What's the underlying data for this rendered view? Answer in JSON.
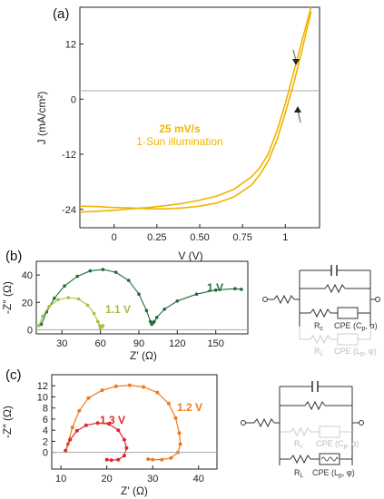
{
  "panels": {
    "a": "(a)",
    "b": "(b)",
    "c": "(c)"
  },
  "chart_data": [
    {
      "type": "line",
      "panel": "(a)",
      "xlabel": "V (V)",
      "ylabel": "J (mA/cm²)",
      "xlim": [
        -0.2,
        1.2
      ],
      "ylim": [
        -28,
        20
      ],
      "xticks": [
        "0",
        "0.25",
        "0.50",
        "0.75",
        "1"
      ],
      "yticks": [
        "-24",
        "-12",
        "0",
        "12"
      ],
      "annotations": [
        "25 mV/s",
        "1-Sun illumination"
      ],
      "color": "#f0b400",
      "series": [
        {
          "x": [
            -0.2,
            -0.1,
            0.0,
            0.1,
            0.2,
            0.3,
            0.4,
            0.5,
            0.6,
            0.7,
            0.8,
            0.85,
            0.9,
            0.95,
            1.0,
            1.05,
            1.1,
            1.15
          ],
          "y": [
            -24.6,
            -24.4,
            -24.2,
            -23.9,
            -23.6,
            -23.2,
            -22.7,
            -22.0,
            -21.1,
            -19.6,
            -17.0,
            -15.0,
            -12.0,
            -7.0,
            -1.0,
            6.0,
            13.0,
            20.0
          ]
        },
        {
          "x": [
            -0.2,
            -0.1,
            0.0,
            0.1,
            0.2,
            0.3,
            0.4,
            0.5,
            0.6,
            0.7,
            0.8,
            0.85,
            0.9,
            0.95,
            1.0,
            1.05,
            1.1,
            1.15
          ],
          "y": [
            -23.3,
            -23.4,
            -23.6,
            -23.7,
            -23.9,
            -23.9,
            -23.7,
            -23.3,
            -22.6,
            -21.3,
            -18.8,
            -16.5,
            -13.5,
            -9.0,
            -3.0,
            3.5,
            11.0,
            19.0
          ]
        }
      ]
    },
    {
      "type": "scatter",
      "panel": "(b)",
      "xlabel": "Z′ (Ω)",
      "ylabel": "-Z″ (Ω)",
      "xlim": [
        10,
        175
      ],
      "ylim": [
        -3,
        50
      ],
      "xticks": [
        "30",
        "60",
        "90",
        "120",
        "150"
      ],
      "yticks": [
        "0",
        "20",
        "40"
      ],
      "series": [
        {
          "name": "1 V",
          "color": "#1f6b3a",
          "x": [
            14,
            18,
            24,
            32,
            42,
            52,
            62,
            72,
            82,
            90,
            96,
            99,
            100,
            101,
            102,
            104,
            110,
            120,
            135,
            150,
            165,
            170
          ],
          "y": [
            4,
            13,
            23,
            32,
            39,
            43,
            44,
            42,
            36,
            26,
            14,
            6,
            4,
            5,
            6,
            9,
            15,
            21,
            26,
            29,
            30,
            29.5
          ]
        },
        {
          "name": "1.1 V",
          "color": "#a3c23a",
          "x": [
            12,
            15,
            20,
            27,
            35,
            43,
            50,
            55,
            58,
            59.5,
            60,
            61,
            62
          ],
          "y": [
            3,
            10,
            17,
            22,
            23.5,
            22.5,
            18,
            12,
            6,
            3,
            1,
            2,
            3
          ]
        }
      ]
    },
    {
      "type": "scatter",
      "panel": "(c)",
      "xlabel": "Z′ (Ω)",
      "ylabel": "-Z″ (Ω)",
      "xlim": [
        8,
        44
      ],
      "ylim": [
        -3,
        14
      ],
      "xticks": [
        "10",
        "20",
        "30",
        "40"
      ],
      "yticks": [
        "0",
        "2",
        "4",
        "6",
        "8",
        "10",
        "12"
      ],
      "series": [
        {
          "name": "1.2 V",
          "color": "#f07a1a",
          "x": [
            11.5,
            12.5,
            14,
            16,
            19,
            22,
            25,
            28,
            31,
            33.5,
            35,
            35.8,
            36,
            35.5,
            34,
            32,
            30,
            29
          ],
          "y": [
            1.5,
            4.5,
            7.5,
            9.8,
            11.2,
            11.9,
            12.1,
            11.8,
            10.8,
            8.8,
            6.2,
            3.5,
            1.5,
            0,
            -1,
            -1.3,
            -1.3,
            -1.2
          ]
        },
        {
          "name": "1.3 V",
          "color": "#e0262a",
          "x": [
            11,
            12,
            13.5,
            15.5,
            18,
            20.5,
            22.5,
            23.8,
            24.3,
            23.8,
            22.5,
            21,
            20
          ],
          "y": [
            0.3,
            2.3,
            3.9,
            4.9,
            5.3,
            5.1,
            4.0,
            2.3,
            0.8,
            -0.6,
            -1.3,
            -1.4,
            -1.3
          ]
        }
      ]
    }
  ],
  "circuits": {
    "b": {
      "labels": [
        "R",
        "CPE (C",
        ", α)",
        "R",
        "CPE (L",
        ", φ)"
      ],
      "subs": [
        "c",
        "p",
        "L",
        "φ"
      ]
    },
    "c": {
      "labels": [
        "R",
        "CPE (C",
        ", α)",
        "R",
        "CPE (L",
        ", φ)"
      ],
      "subs": [
        "c",
        "p",
        "L",
        "φ"
      ]
    }
  }
}
